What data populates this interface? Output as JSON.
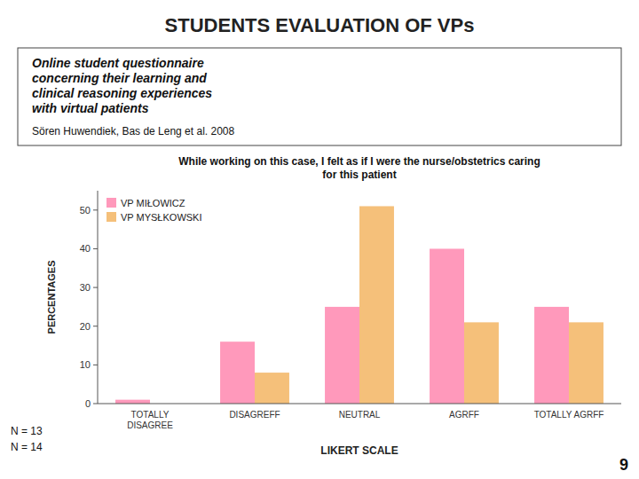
{
  "chart_data": {
    "type": "bar",
    "title": "While working on this case, I felt as if I were the nurse/obstetrics caring\nfor this patient",
    "xlabel": "LIKERT SCALE",
    "ylabel": "PERCENTAGES",
    "categories": [
      "TOTALLY\nDISAGREE",
      "DISAGREFF",
      "NEUTRAL",
      "AGRFF",
      "TOTALLY AGRFF"
    ],
    "series": [
      {
        "name": "VP MIŁOWICZ",
        "color": "#FF99BB",
        "values": [
          1,
          16,
          25,
          40,
          25
        ]
      },
      {
        "name": "VP MYSŁKOWSKI",
        "color": "#F5C07A",
        "values": [
          0,
          8,
          51,
          21,
          21
        ]
      }
    ],
    "ylim": [
      0,
      55
    ],
    "yticks": [
      0,
      10,
      20,
      30,
      40,
      50
    ],
    "grid": false,
    "legend": "upper left",
    "annotations": [
      "STUDENTS EVALUATION OF VPs",
      "Online student questionnaire\nconcerning their learning and\nclinical reasoning experiences\nwith virtual patients",
      "Sören Huwendiek, Bas de Leng et al. 2008",
      "N = 13",
      "N = 14",
      "9"
    ]
  }
}
